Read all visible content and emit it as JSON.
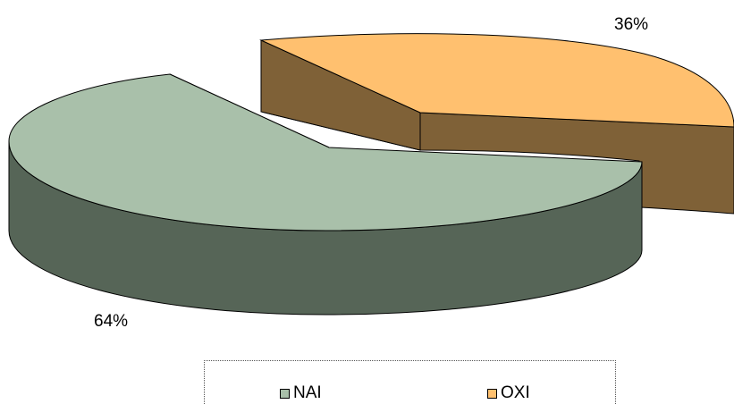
{
  "chart_data": {
    "type": "pie",
    "style": "3d-exploded",
    "categories": [
      "NAI",
      "OXI"
    ],
    "values": [
      64,
      36
    ],
    "data_labels": [
      "64%",
      "36%"
    ],
    "colors": {
      "NAI": {
        "top": "#A9C0AA",
        "side": "#566557"
      },
      "OXI": {
        "top": "#FFC06F",
        "side": "#7F6137"
      }
    },
    "legend": {
      "placement": "bottom"
    },
    "title": ""
  }
}
